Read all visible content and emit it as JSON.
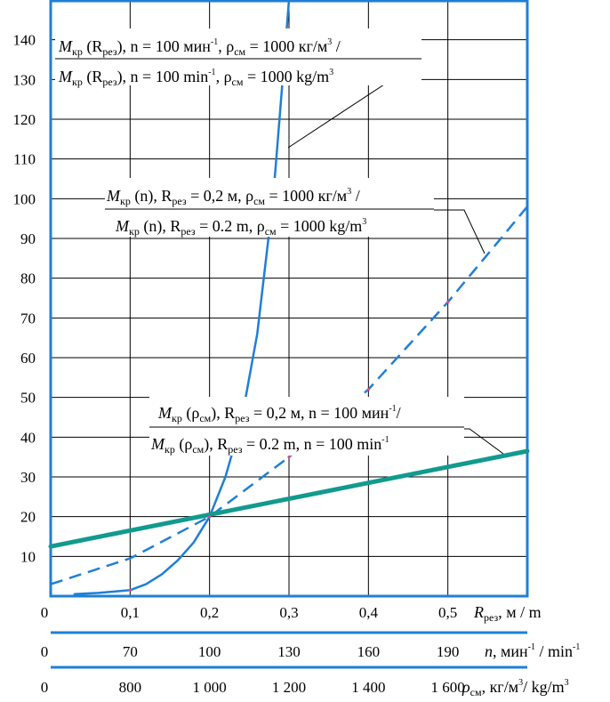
{
  "chart_data": {
    "type": "line",
    "colors": {
      "axis": "#1f7fd6",
      "grid": "#000000",
      "thick_curve": "#129a8e",
      "blue_curve": "#1f7fd6",
      "marker": "#e5448c"
    },
    "y_axis": {
      "ylim": [
        0,
        150
      ],
      "ticks": [
        "10",
        "20",
        "30",
        "40",
        "50",
        "60",
        "70",
        "80",
        "90",
        "100",
        "110",
        "120",
        "130",
        "140"
      ]
    },
    "x_axes": [
      {
        "id": "r",
        "label": "R",
        "label_sub": "рез",
        "label_tail": ", м / m",
        "range": [
          0,
          0.6
        ],
        "ticks": [
          "0",
          "0,1",
          "0,2",
          "0,3",
          "0,4",
          "0,5"
        ],
        "tick_values": [
          0,
          0.1,
          0.2,
          0.3,
          0.4,
          0.5
        ]
      },
      {
        "id": "n",
        "label": "n",
        "label_tail": ", мин",
        "label_sup1": "-1",
        "label_mid": " / min",
        "label_sup2": "-1",
        "range": [
          40,
          220
        ],
        "ticks": [
          "0",
          "70",
          "100",
          "130",
          "160",
          "190"
        ],
        "tick_values": [
          40,
          70,
          100,
          130,
          160,
          190
        ]
      },
      {
        "id": "rho",
        "label": "ρ",
        "label_sub": "см",
        "label_tail": ", кг/м",
        "label_sup1": "3",
        "label_mid": "/ kg/m",
        "label_sup2": "3",
        "range": [
          600,
          1800
        ],
        "ticks": [
          "0",
          "800",
          "1 000",
          "1 200",
          "1 400",
          "1 600"
        ],
        "tick_values": [
          600,
          800,
          1000,
          1200,
          1400,
          1600
        ]
      }
    ],
    "series": [
      {
        "id": "m_r",
        "style": "solid-thin",
        "x": [
          0.03,
          0.06,
          0.1,
          0.12,
          0.14,
          0.16,
          0.18,
          0.2,
          0.22,
          0.24,
          0.26,
          0.28,
          0.29,
          0.3
        ],
        "y": [
          0.5,
          0.8,
          1.5,
          3,
          5.5,
          9,
          13.5,
          20,
          30,
          44,
          66,
          100,
          125,
          150
        ]
      },
      {
        "id": "m_n",
        "style": "dashed",
        "x": [
          0,
          0.1,
          0.2,
          0.3,
          0.4,
          0.5,
          0.6
        ],
        "y": [
          3,
          9.5,
          20,
          35,
          52,
          74,
          98
        ]
      },
      {
        "id": "m_rho",
        "style": "solid-thick",
        "x": [
          0,
          0.1,
          0.2,
          0.3,
          0.4,
          0.5,
          0.6
        ],
        "y": [
          12.5,
          16.5,
          20.5,
          24.5,
          28.5,
          32.5,
          36.5
        ]
      }
    ],
    "markers": [
      {
        "x": 0.1,
        "y": 1.5
      },
      {
        "x": 0.2,
        "y": 20
      },
      {
        "x": 0.3,
        "y": 135.5
      },
      {
        "x": 0.3,
        "y": 35
      },
      {
        "x": 0.4,
        "y": 52
      },
      {
        "x": 0.5,
        "y": 74
      }
    ],
    "annotations": [
      {
        "id": "m_r",
        "line1": {
          "M": "M",
          "kr": "кр",
          "mid": " (R",
          "rez": "рез",
          "rest1": "), n = 100 мин",
          "sup": "-1",
          "rest2": ", ρ",
          "sm": "см",
          "rest3": " = 1000 кг/м",
          "sup2": "3",
          "tail": " /"
        },
        "line2": {
          "M": "M",
          "kr": "кр",
          "mid": " (R",
          "rez": "рез",
          "rest1": "), n = 100 min",
          "sup": "-1",
          "rest2": ", ρ",
          "sm": "см",
          "rest3": " = 1000 kg/m",
          "sup2": "3",
          "tail": ""
        }
      },
      {
        "id": "m_n",
        "line1": {
          "M": "M",
          "kr": "кр",
          "mid": " (n), R",
          "rez": "рез",
          "rest1": " = 0,2 м, ρ",
          "sm": "см",
          "rest2": " = 1000 кг/м",
          "sup": "3",
          "tail": " /"
        },
        "line2": {
          "M": "M",
          "kr": "кр",
          "mid": " (n), R",
          "rez": "рез",
          "rest1": " = 0.2 m, ρ",
          "sm": "см",
          "rest2": " = 1000 kg/m",
          "sup": "3",
          "tail": ""
        }
      },
      {
        "id": "m_rho",
        "line1": {
          "M": "M",
          "kr": "кр",
          "mid": " (ρ",
          "sm": "см",
          "rest0": "), R",
          "rez": "рез",
          "rest1": " = 0,2 м, n = 100 мин",
          "sup": "-1",
          "tail": "/"
        },
        "line2": {
          "M": "M",
          "kr": "кр",
          "mid": " (ρ",
          "sm": "см",
          "rest0": "), R",
          "rez": "рез",
          "rest1": " = 0.2 m, n = 100 min",
          "sup": "-1",
          "tail": ""
        }
      }
    ]
  }
}
